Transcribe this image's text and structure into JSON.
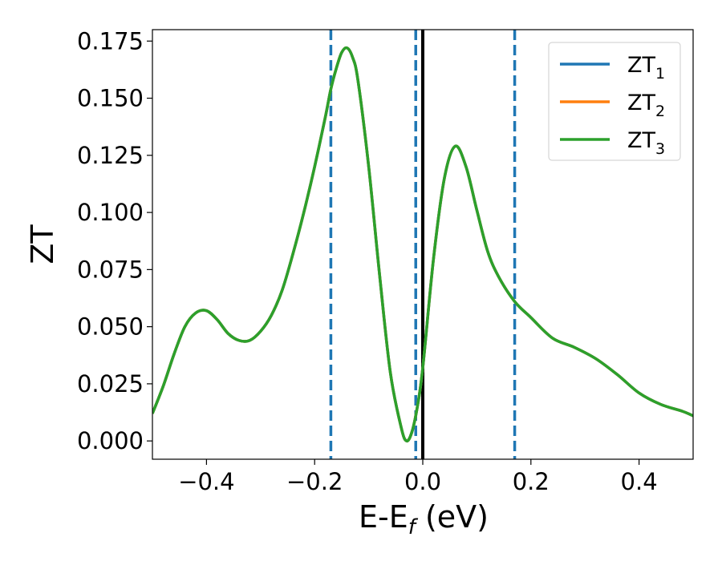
{
  "chart_data": {
    "type": "line",
    "xlabel": "E-E",
    "xlabel_subscript": "f",
    "xlabel_unit": " (eV)",
    "ylabel": "ZT",
    "xlim": [
      -0.5,
      0.5
    ],
    "ylim": [
      -0.008,
      0.18
    ],
    "x_ticks": [
      -0.4,
      -0.2,
      0.0,
      0.2,
      0.4
    ],
    "x_tick_labels": [
      "−0.4",
      "−0.2",
      "0.0",
      "0.2",
      "0.4"
    ],
    "y_ticks": [
      0.0,
      0.025,
      0.05,
      0.075,
      0.1,
      0.125,
      0.15,
      0.175
    ],
    "y_tick_labels": [
      "0.000",
      "0.025",
      "0.050",
      "0.075",
      "0.100",
      "0.125",
      "0.150",
      "0.175"
    ],
    "grid": false,
    "legend_position": "top-right",
    "vlines": [
      {
        "x": -0.17,
        "style": "dashed",
        "color": "#1f77b4"
      },
      {
        "x": -0.013,
        "style": "dashed",
        "color": "#1f77b4"
      },
      {
        "x": 0.0,
        "style": "solid",
        "color": "#000000"
      },
      {
        "x": 0.17,
        "style": "dashed",
        "color": "#1f77b4"
      }
    ],
    "x": [
      -0.5,
      -0.48,
      -0.46,
      -0.44,
      -0.42,
      -0.4,
      -0.38,
      -0.36,
      -0.34,
      -0.32,
      -0.3,
      -0.28,
      -0.26,
      -0.24,
      -0.22,
      -0.2,
      -0.18,
      -0.17,
      -0.16,
      -0.15,
      -0.14,
      -0.13,
      -0.12,
      -0.1,
      -0.08,
      -0.06,
      -0.04,
      -0.03,
      -0.02,
      -0.01,
      0.0,
      0.02,
      0.04,
      0.06,
      0.08,
      0.1,
      0.12,
      0.14,
      0.17,
      0.2,
      0.24,
      0.28,
      0.32,
      0.36,
      0.4,
      0.44,
      0.48,
      0.5
    ],
    "series": [
      {
        "name": "ZT",
        "name_subscript": "1",
        "color": "#1f77b4",
        "values": [
          0.012,
          0.024,
          0.038,
          0.05,
          0.056,
          0.057,
          0.053,
          0.047,
          0.044,
          0.044,
          0.048,
          0.055,
          0.066,
          0.082,
          0.1,
          0.12,
          0.142,
          0.154,
          0.163,
          0.17,
          0.172,
          0.168,
          0.158,
          0.12,
          0.073,
          0.03,
          0.006,
          0.0,
          0.004,
          0.015,
          0.032,
          0.08,
          0.115,
          0.129,
          0.12,
          0.101,
          0.083,
          0.072,
          0.061,
          0.054,
          0.045,
          0.041,
          0.036,
          0.029,
          0.021,
          0.016,
          0.013,
          0.011
        ]
      },
      {
        "name": "ZT",
        "name_subscript": "2",
        "color": "#ff7f0e",
        "values": [
          0.012,
          0.024,
          0.038,
          0.05,
          0.056,
          0.057,
          0.053,
          0.047,
          0.044,
          0.044,
          0.048,
          0.055,
          0.066,
          0.082,
          0.1,
          0.12,
          0.142,
          0.154,
          0.163,
          0.17,
          0.172,
          0.168,
          0.158,
          0.12,
          0.073,
          0.03,
          0.006,
          0.0,
          0.004,
          0.015,
          0.032,
          0.08,
          0.115,
          0.129,
          0.12,
          0.101,
          0.083,
          0.072,
          0.061,
          0.054,
          0.045,
          0.041,
          0.036,
          0.029,
          0.021,
          0.016,
          0.013,
          0.011
        ]
      },
      {
        "name": "ZT",
        "name_subscript": "3",
        "color": "#2ca02c",
        "values": [
          0.012,
          0.024,
          0.038,
          0.05,
          0.056,
          0.057,
          0.053,
          0.047,
          0.044,
          0.044,
          0.048,
          0.055,
          0.066,
          0.082,
          0.1,
          0.12,
          0.142,
          0.154,
          0.163,
          0.17,
          0.172,
          0.168,
          0.158,
          0.12,
          0.073,
          0.03,
          0.006,
          0.0,
          0.004,
          0.015,
          0.032,
          0.08,
          0.115,
          0.129,
          0.12,
          0.101,
          0.083,
          0.072,
          0.061,
          0.054,
          0.045,
          0.041,
          0.036,
          0.029,
          0.021,
          0.016,
          0.013,
          0.011
        ]
      }
    ]
  }
}
